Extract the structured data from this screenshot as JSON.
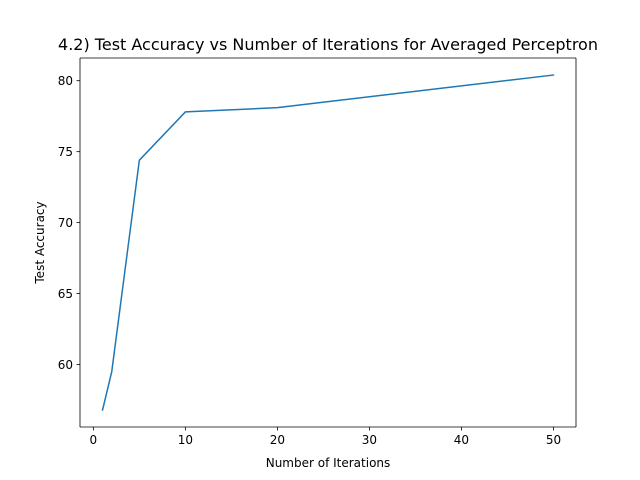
{
  "chart_data": {
    "type": "line",
    "title": "4.2) Test Accuracy vs Number of Iterations for Averaged Perceptron",
    "xlabel": "Number of Iterations",
    "ylabel": "Test Accuracy",
    "xlim": [
      -1.45,
      52.45
    ],
    "ylim": [
      55.6,
      81.6
    ],
    "xticks": [
      0,
      10,
      20,
      30,
      40,
      50
    ],
    "yticks": [
      60,
      65,
      70,
      75,
      80
    ],
    "grid": false,
    "series": [
      {
        "name": "Averaged Perceptron",
        "color": "#1f77b4",
        "x": [
          1,
          2,
          5,
          10,
          20,
          50
        ],
        "y": [
          56.8,
          59.5,
          74.4,
          77.8,
          78.1,
          80.4
        ]
      }
    ]
  }
}
